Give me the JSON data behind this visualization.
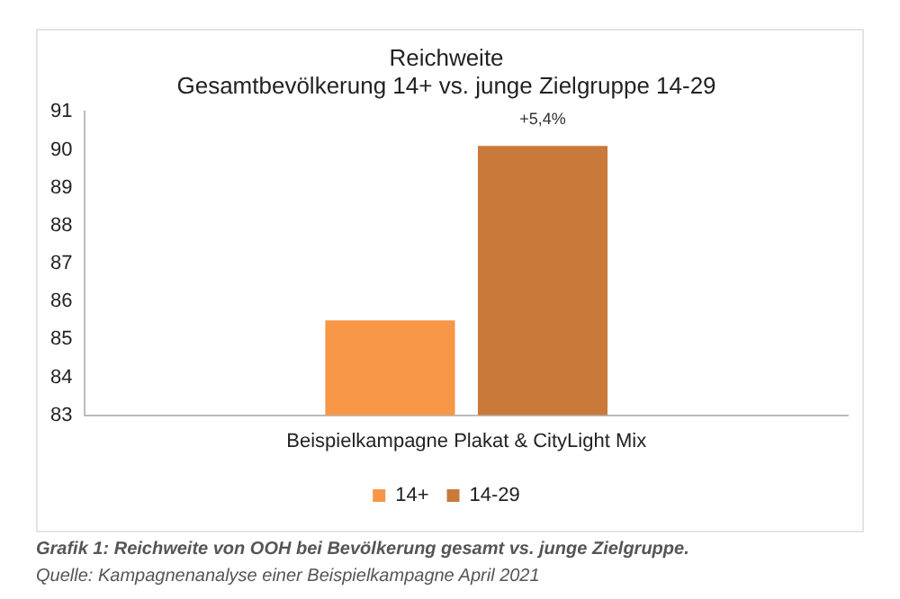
{
  "chart_data": {
    "type": "bar",
    "title": "Reichweite\nGesamtbevölkerung 14+ vs. junge Zielgruppe 14-29",
    "categories": [
      "Beispielkampagne Plakat & CityLight Mix"
    ],
    "series": [
      {
        "name": "14+",
        "color": "#f79646",
        "values": [
          85.5
        ]
      },
      {
        "name": "14-29",
        "color": "#c97a3a",
        "values": [
          90.1
        ]
      }
    ],
    "ylim": [
      83,
      91
    ],
    "yticks": [
      83,
      84,
      85,
      86,
      87,
      88,
      89,
      90,
      91
    ],
    "grid": false,
    "legend": "bottom",
    "annotations": [
      "+5,4%",
      "Grafik 1: Reichweite von OOH bei Bevölkerung gesamt vs. junge Zielgruppe.",
      "Quelle: Kampagnenanalyse einer Beispielkampagne April 2021"
    ]
  }
}
